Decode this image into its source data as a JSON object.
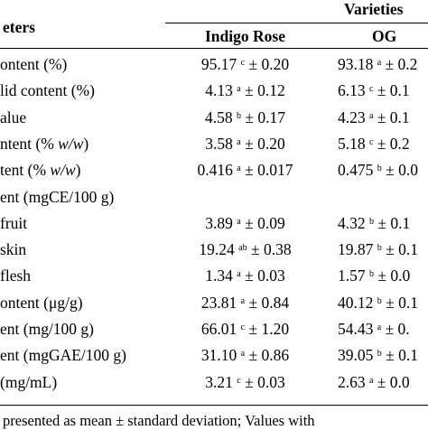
{
  "header": {
    "parameters_label": "eters",
    "varieties_label": "Varieties",
    "columns": [
      "Indigo Rose",
      "OG"
    ]
  },
  "rows": [
    {
      "param": "ontent (%)",
      "indigo": {
        "mean": "95.17",
        "sup": "c",
        "sd": "± 0.20"
      },
      "og": {
        "mean": "93.18",
        "sup": "a",
        "sd": "± 0.2"
      }
    },
    {
      "param": "lid content (%)",
      "indigo": {
        "mean": "4.13",
        "sup": "a",
        "sd": "± 0.12"
      },
      "og": {
        "mean": "6.13",
        "sup": "c",
        "sd": "± 0.1"
      }
    },
    {
      "param": "alue",
      "indigo": {
        "mean": "4.58",
        "sup": "b",
        "sd": "± 0.17"
      },
      "og": {
        "mean": "4.23",
        "sup": "a",
        "sd": "± 0.1"
      }
    },
    {
      "param_pre": "ntent (% ",
      "param_em": "w/w",
      "param_post": ")",
      "indigo": {
        "mean": "3.58",
        "sup": "a",
        "sd": "± 0.20"
      },
      "og": {
        "mean": "5.18",
        "sup": "c",
        "sd": "± 0.2"
      }
    },
    {
      "param_pre": "tent (% ",
      "param_em": "w/w",
      "param_post": ")",
      "indigo": {
        "mean": "0.416",
        "sup": "a",
        "sd": "± 0.017"
      },
      "og": {
        "mean": "0.475",
        "sup": "b",
        "sd": "± 0.0"
      }
    },
    {
      "param": "ent (mgCE/100 g)"
    },
    {
      "param": "fruit",
      "indigo": {
        "mean": "3.89",
        "sup": "a",
        "sd": "± 0.09"
      },
      "og": {
        "mean": "4.32",
        "sup": "b",
        "sd": "± 0.1"
      }
    },
    {
      "param": "skin",
      "indigo": {
        "mean": "19.24",
        "sup": "ab",
        "sd": "± 0.38"
      },
      "og": {
        "mean": "19.87",
        "sup": "b",
        "sd": "± 0.1"
      }
    },
    {
      "param": "flesh",
      "indigo": {
        "mean": "1.34",
        "sup": "a",
        "sd": "± 0.03"
      },
      "og": {
        "mean": "1.57",
        "sup": "b",
        "sd": "± 0.0"
      }
    },
    {
      "param": "ontent (μg/g)",
      "indigo": {
        "mean": "23.81",
        "sup": "a",
        "sd": "± 0.84"
      },
      "og": {
        "mean": "40.12",
        "sup": "b",
        "sd": "± 0.1"
      }
    },
    {
      "param": "ent (mg/100 g)",
      "indigo": {
        "mean": "66.01",
        "sup": "c",
        "sd": "± 1.20"
      },
      "og": {
        "mean": "54.43",
        "sup": "a",
        "sd": "± 0."
      }
    },
    {
      "param": "ent (mgGAE/100 g)",
      "indigo": {
        "mean": "31.10",
        "sup": "a",
        "sd": "± 0.86"
      },
      "og": {
        "mean": "39.05",
        "sup": "b",
        "sd": "± 0.1"
      }
    },
    {
      "param": "(mg/mL)",
      "indigo": {
        "mean": "3.21",
        "sup": "c",
        "sd": "± 0.03"
      },
      "og": {
        "mean": "2.63",
        "sup": "a",
        "sd": "± 0.0"
      }
    }
  ],
  "footnote": "presented as mean ± standard deviation; Values with"
}
